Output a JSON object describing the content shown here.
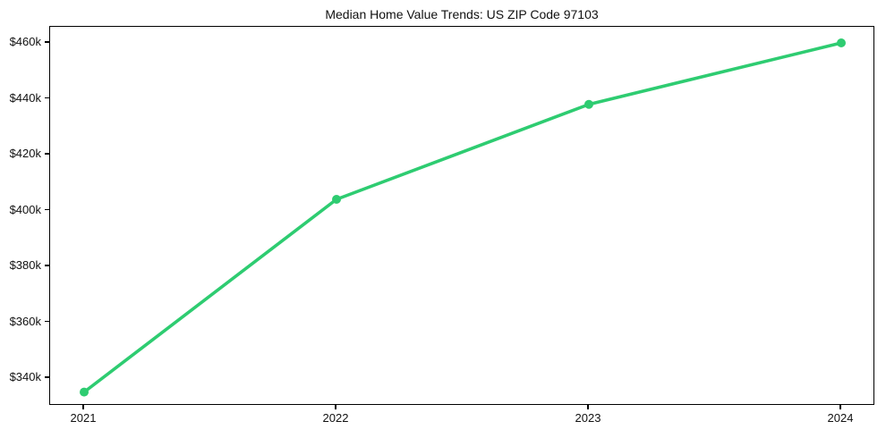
{
  "figure": {
    "background": "#ffffff",
    "axis_color": "#000000",
    "text_color": "#111111"
  },
  "chart_data": {
    "type": "line",
    "title": "Median Home Value Trends: US ZIP Code 97103",
    "categories": [
      "2021",
      "2022",
      "2023",
      "2024"
    ],
    "series": [
      {
        "name": "Median Home Value",
        "values": [
          335000,
          404000,
          438000,
          460000
        ],
        "color": "#2ecc71",
        "marker": "circle"
      }
    ],
    "x_tick_labels": [
      "2021",
      "2022",
      "2023",
      "2024"
    ],
    "y_ticks": [
      {
        "value": 340000,
        "label": "$340k"
      },
      {
        "value": 360000,
        "label": "$360k"
      },
      {
        "value": 380000,
        "label": "$380k"
      },
      {
        "value": 400000,
        "label": "$400k"
      },
      {
        "value": 420000,
        "label": "$420k"
      },
      {
        "value": 440000,
        "label": "$440k"
      },
      {
        "value": 460000,
        "label": "$460k"
      }
    ],
    "ylim": [
      330000,
      466000
    ],
    "xlabel": "",
    "ylabel": "",
    "grid": false,
    "legend": false
  }
}
